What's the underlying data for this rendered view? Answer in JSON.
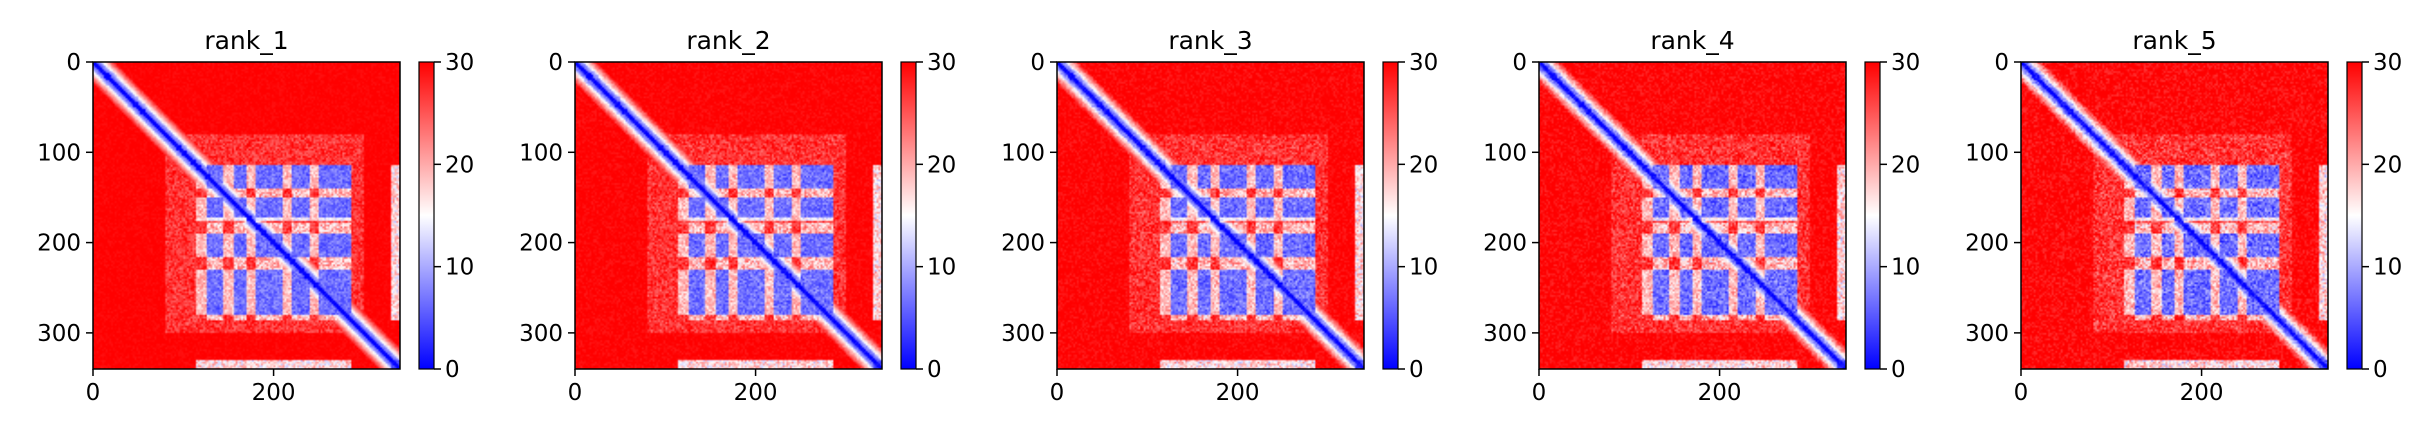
{
  "chart_data": {
    "type": "heatmap",
    "colormap": "bwr",
    "panels": [
      {
        "title": "rank_1",
        "variant": 0
      },
      {
        "title": "rank_2",
        "variant": 1
      },
      {
        "title": "rank_3",
        "variant": 2
      },
      {
        "title": "rank_4",
        "variant": 3
      },
      {
        "title": "rank_5",
        "variant": 4
      }
    ],
    "matrix_size": 340,
    "xlim": [
      0,
      340
    ],
    "ylim": [
      340,
      0
    ],
    "x_ticks": [
      0,
      200
    ],
    "y_ticks": [
      0,
      100,
      200,
      300
    ],
    "colorbar": {
      "vmin": 0,
      "vmax": 30,
      "ticks": [
        0,
        10,
        20,
        30
      ]
    },
    "structure": {
      "blocks_start": 115,
      "blocks_end": 285,
      "stripe_x": [
        120,
        150,
        175,
        215,
        245
      ],
      "band_y": [
        [
          115,
          140
        ],
        [
          150,
          175
        ],
        [
          190,
          215
        ],
        [
          230,
          280
        ]
      ],
      "tail_segment": [
        330,
        340
      ]
    },
    "colors": {
      "low": "#0000ff",
      "mid": "#ffffff",
      "high": "#ff0000"
    }
  }
}
